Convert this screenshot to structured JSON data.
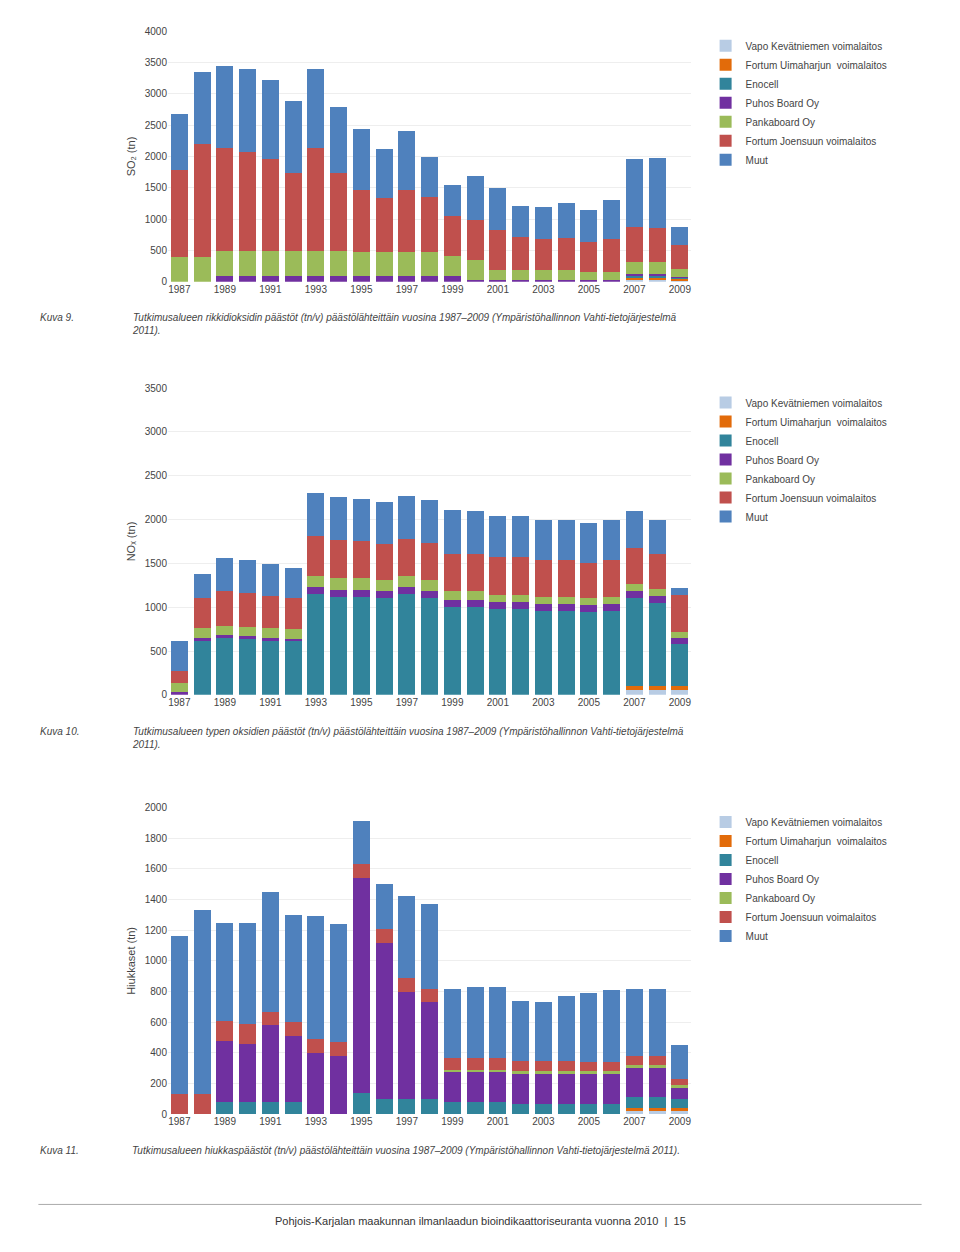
{
  "chart_data": [
    {
      "type": "bar",
      "stacked": true,
      "grid": true,
      "legend": "upper right",
      "ylabel": "SO₂ (tn)",
      "categories": [
        "1987",
        null,
        "1989",
        null,
        "1991",
        null,
        "1993",
        null,
        "1995",
        null,
        "1997",
        null,
        "1999",
        null,
        "2001",
        null,
        "2003",
        null,
        "2005",
        null,
        "2007",
        null,
        "2009"
      ],
      "ylim": [
        0,
        4000
      ],
      "yticks": [
        0,
        500,
        1000,
        1500,
        2000,
        2500,
        3000,
        3500,
        4000
      ],
      "series": [
        {
          "name": "Vapo Kevätniemen voimalaitos",
          "color": "#b8cce4",
          "values": [
            0,
            0,
            0,
            0,
            0,
            0,
            0,
            0,
            0,
            0,
            0,
            0,
            0,
            0,
            0,
            0,
            0,
            0,
            0,
            0,
            30,
            30,
            20
          ]
        },
        {
          "name": "Fortum Uimaharjun  voimalaitos",
          "color": "#e26b0a",
          "values": [
            0,
            0,
            0,
            0,
            0,
            0,
            0,
            0,
            0,
            0,
            0,
            0,
            0,
            0,
            0,
            0,
            0,
            0,
            0,
            0,
            30,
            30,
            20
          ]
        },
        {
          "name": "Enocell",
          "color": "#31849b",
          "values": [
            0,
            0,
            0,
            0,
            0,
            0,
            0,
            0,
            0,
            0,
            0,
            0,
            0,
            0,
            0,
            0,
            0,
            0,
            0,
            0,
            40,
            40,
            20
          ]
        },
        {
          "name": "Puhos Board Oy",
          "color": "#7030a0",
          "values": [
            0,
            0,
            90,
            90,
            90,
            90,
            90,
            90,
            90,
            90,
            90,
            90,
            90,
            30,
            30,
            30,
            30,
            30,
            30,
            30,
            30,
            30,
            20
          ]
        },
        {
          "name": "Pankaboard Oy",
          "color": "#9bbb59",
          "values": [
            400,
            400,
            400,
            400,
            400,
            400,
            400,
            400,
            380,
            380,
            380,
            380,
            320,
            320,
            160,
            160,
            160,
            160,
            130,
            130,
            180,
            180,
            130
          ]
        },
        {
          "name": "Fortum Joensuun voimalaitos",
          "color": "#c0504d",
          "values": [
            1380,
            1800,
            1640,
            1580,
            1470,
            1250,
            1640,
            1240,
            990,
            870,
            1000,
            880,
            640,
            640,
            640,
            530,
            500,
            510,
            480,
            520,
            570,
            540,
            380
          ]
        },
        {
          "name": "Muut",
          "color": "#4f81bd",
          "values": [
            900,
            1150,
            1310,
            1320,
            1260,
            1140,
            1270,
            1060,
            980,
            780,
            930,
            650,
            490,
            700,
            660,
            490,
            500,
            550,
            510,
            630,
            1080,
            1120,
            280
          ]
        }
      ],
      "annotations": [
        "Kuva 9.",
        "Tutkimusalueen rikkidioksidin päästöt (tn/v) päästölähteittäin vuosina 1987–2009 (Ympäristöhallinnon Vahti-tietojärjestelmä\n2011)."
      ]
    },
    {
      "type": "bar",
      "stacked": true,
      "grid": true,
      "legend": "upper right",
      "ylabel": "NOₓ (tn)",
      "categories": [
        "1987",
        null,
        "1989",
        null,
        "1991",
        null,
        "1993",
        null,
        "1995",
        null,
        "1997",
        null,
        "1999",
        null,
        "2001",
        null,
        "2003",
        null,
        "2005",
        null,
        "2007",
        null,
        "2009"
      ],
      "ylim": [
        0,
        3500
      ],
      "yticks": [
        0,
        500,
        1000,
        1500,
        2000,
        2500,
        3000,
        3500
      ],
      "series": [
        {
          "name": "Vapo Kevätniemen voimalaitos",
          "color": "#b8cce4",
          "values": [
            0,
            0,
            0,
            0,
            0,
            0,
            0,
            0,
            0,
            0,
            0,
            0,
            0,
            0,
            0,
            0,
            0,
            0,
            0,
            0,
            50,
            50,
            50
          ]
        },
        {
          "name": "Fortum Uimaharjun  voimalaitos",
          "color": "#e26b0a",
          "values": [
            0,
            0,
            0,
            0,
            0,
            0,
            0,
            0,
            0,
            0,
            0,
            0,
            0,
            0,
            0,
            0,
            0,
            0,
            0,
            0,
            50,
            50,
            50
          ]
        },
        {
          "name": "Enocell",
          "color": "#31849b",
          "values": [
            0,
            620,
            650,
            640,
            620,
            610,
            1150,
            1120,
            1120,
            1100,
            1150,
            1100,
            1000,
            1000,
            980,
            980,
            960,
            960,
            940,
            960,
            1000,
            950,
            480
          ]
        },
        {
          "name": "Puhos Board Oy",
          "color": "#7030a0",
          "values": [
            30,
            30,
            30,
            30,
            30,
            30,
            80,
            80,
            80,
            80,
            80,
            80,
            80,
            80,
            80,
            80,
            80,
            80,
            80,
            80,
            80,
            80,
            70
          ]
        },
        {
          "name": "Pankaboard Oy",
          "color": "#9bbb59",
          "values": [
            100,
            110,
            110,
            110,
            110,
            110,
            130,
            130,
            130,
            130,
            130,
            130,
            100,
            100,
            80,
            80,
            80,
            80,
            80,
            80,
            80,
            80,
            70
          ]
        },
        {
          "name": "Fortum Joensuun voimalaitos",
          "color": "#c0504d",
          "values": [
            140,
            350,
            390,
            380,
            370,
            360,
            450,
            440,
            420,
            410,
            420,
            420,
            430,
            430,
            430,
            430,
            420,
            420,
            410,
            420,
            420,
            400,
            420
          ]
        },
        {
          "name": "Muut",
          "color": "#4f81bd",
          "values": [
            350,
            270,
            380,
            380,
            360,
            340,
            490,
            490,
            480,
            480,
            490,
            490,
            500,
            490,
            470,
            470,
            460,
            460,
            450,
            460,
            420,
            390,
            80
          ]
        }
      ],
      "annotations": [
        "Kuva 10.",
        "Tutkimusalueen typen oksidien päästöt (tn/v) päästölähteittäin vuosina 1987–2009 (Ympäristöhallinnon Vahti-tietojärjestelmä\n2011)."
      ]
    },
    {
      "type": "bar",
      "stacked": true,
      "grid": true,
      "legend": "upper right",
      "ylabel": "Hiukkaset (tn)",
      "categories": [
        "1987",
        null,
        "1989",
        null,
        "1991",
        null,
        "1993",
        null,
        "1995",
        null,
        "1997",
        null,
        "1999",
        null,
        "2001",
        null,
        "2003",
        null,
        "2005",
        null,
        "2007",
        null,
        "2009"
      ],
      "ylim": [
        0,
        2000
      ],
      "yticks": [
        0,
        200,
        400,
        600,
        800,
        1000,
        1200,
        1400,
        1600,
        1800,
        2000
      ],
      "series": [
        {
          "name": "Vapo Kevätniemen voimalaitos",
          "color": "#b8cce4",
          "values": [
            0,
            0,
            0,
            0,
            0,
            0,
            0,
            0,
            0,
            0,
            0,
            0,
            0,
            0,
            0,
            0,
            0,
            0,
            0,
            0,
            20,
            20,
            20
          ]
        },
        {
          "name": "Fortum Uimaharjun  voimalaitos",
          "color": "#e26b0a",
          "values": [
            0,
            0,
            0,
            0,
            0,
            0,
            0,
            0,
            0,
            0,
            0,
            0,
            0,
            0,
            0,
            0,
            0,
            0,
            0,
            0,
            20,
            20,
            20
          ]
        },
        {
          "name": "Enocell",
          "color": "#31849b",
          "values": [
            0,
            0,
            80,
            80,
            80,
            80,
            0,
            0,
            140,
            100,
            100,
            100,
            80,
            80,
            80,
            70,
            70,
            70,
            70,
            70,
            70,
            70,
            60
          ]
        },
        {
          "name": "Puhos Board Oy",
          "color": "#7030a0",
          "values": [
            0,
            0,
            400,
            380,
            500,
            430,
            400,
            380,
            1400,
            1020,
            700,
            630,
            200,
            200,
            200,
            200,
            200,
            200,
            200,
            200,
            200,
            200,
            80
          ]
        },
        {
          "name": "Pankaboard Oy",
          "color": "#9bbb59",
          "values": [
            0,
            0,
            0,
            0,
            0,
            0,
            0,
            0,
            0,
            0,
            0,
            0,
            10,
            10,
            10,
            10,
            10,
            10,
            10,
            10,
            10,
            10,
            10
          ]
        },
        {
          "name": "Fortum Joensuun voimalaitos",
          "color": "#c0504d",
          "values": [
            130,
            130,
            130,
            130,
            90,
            90,
            90,
            90,
            90,
            90,
            90,
            90,
            80,
            80,
            80,
            70,
            70,
            70,
            60,
            60,
            60,
            60,
            40
          ]
        },
        {
          "name": "Muut",
          "color": "#4f81bd",
          "values": [
            1030,
            1200,
            640,
            660,
            780,
            700,
            800,
            770,
            280,
            290,
            530,
            550,
            450,
            460,
            460,
            390,
            380,
            420,
            450,
            470,
            440,
            440,
            220
          ]
        }
      ],
      "annotations": [
        "Kuva 11.",
        "Tutkimusalueen hiukkaspäästöt (tn/v) päästölähteittäin vuosina 1987–2009 (Ympäristöhallinnon Vahti-tietojärjestelmä 2011)."
      ]
    }
  ],
  "footer": "Pohjois-Karjalan maakunnan ilmanlaadun bioindikaattoriseuranta vuonna 2010  |  15"
}
